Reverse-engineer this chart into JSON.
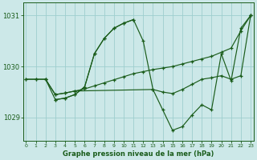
{
  "bg_color": "#cce8e8",
  "grid_color": "#9ecece",
  "line_color": "#1a5c1a",
  "marker": "+",
  "title": "Graphe pression niveau de la mer (hPa)",
  "xlim": [
    -0.3,
    23.3
  ],
  "ylim": [
    1028.55,
    1031.25
  ],
  "yticks": [
    1029,
    1030,
    1031
  ],
  "xticks": [
    0,
    1,
    2,
    3,
    4,
    5,
    6,
    7,
    8,
    9,
    10,
    11,
    12,
    13,
    14,
    15,
    16,
    17,
    18,
    19,
    20,
    21,
    22,
    23
  ],
  "lines": [
    {
      "x": [
        0,
        1,
        2,
        3,
        4,
        5,
        6,
        7,
        8,
        9,
        10,
        11,
        12,
        13,
        14,
        15,
        16,
        17,
        18,
        19,
        20,
        21,
        22,
        23
      ],
      "y": [
        1029.75,
        1029.75,
        1029.75,
        1029.45,
        1029.48,
        1029.52,
        1029.56,
        1029.62,
        1029.68,
        1029.74,
        1029.8,
        1029.86,
        1029.9,
        1029.94,
        1029.97,
        1030.0,
        1030.05,
        1030.1,
        1030.15,
        1030.2,
        1030.28,
        1030.36,
        1030.7,
        1031.0
      ]
    },
    {
      "x": [
        0,
        1,
        2,
        3,
        4,
        5,
        6,
        7,
        8,
        9,
        10,
        11
      ],
      "y": [
        1029.75,
        1029.75,
        1029.75,
        1029.35,
        1029.38,
        1029.45,
        1029.6,
        1030.25,
        1030.55,
        1030.75,
        1030.85,
        1030.92
      ]
    },
    {
      "x": [
        3,
        4,
        5,
        6,
        7,
        8,
        9,
        10,
        11,
        12,
        13,
        14,
        15,
        16,
        17,
        18,
        19,
        20,
        21,
        22,
        23
      ],
      "y": [
        1029.35,
        1029.38,
        1029.45,
        1029.6,
        1030.25,
        1030.55,
        1030.75,
        1030.85,
        1030.92,
        1030.5,
        1029.55,
        1029.15,
        1028.75,
        1028.82,
        1029.05,
        1029.25,
        1029.15,
        1030.25,
        1029.72,
        1030.75,
        1031.0
      ]
    },
    {
      "x": [
        2,
        3,
        4,
        5,
        13,
        14,
        15,
        16,
        17,
        18,
        19,
        20,
        21,
        22,
        23
      ],
      "y": [
        1029.75,
        1029.45,
        1029.48,
        1029.52,
        1029.55,
        1029.5,
        1029.47,
        1029.55,
        1029.65,
        1029.75,
        1029.78,
        1029.82,
        1029.75,
        1029.82,
        1031.0
      ]
    }
  ]
}
